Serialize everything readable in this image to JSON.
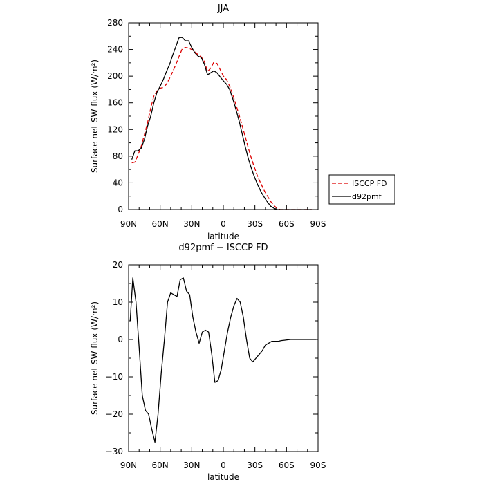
{
  "chart_data": [
    {
      "type": "line",
      "title": "JJA",
      "xlabel": "latitude",
      "ylabel": "Surface net SW flux (W/m²)",
      "x_ticks": [
        "90N",
        "60N",
        "30N",
        "0",
        "30S",
        "60S",
        "90S"
      ],
      "y_ticks": [
        "0",
        "40",
        "80",
        "120",
        "160",
        "200",
        "240",
        "280"
      ],
      "xlim": [
        90,
        -90
      ],
      "ylim": [
        0,
        280
      ],
      "legend": {
        "placement": "right-outside"
      },
      "series": [
        {
          "name": "ISCCP FD",
          "color": "#dd0000",
          "style": "dashed",
          "x": [
            87,
            84,
            81,
            78,
            75,
            72,
            69,
            66,
            63,
            60,
            57,
            54,
            51,
            48,
            45,
            42,
            39,
            36,
            33,
            30,
            27,
            24,
            21,
            18,
            15,
            12,
            9,
            6,
            3,
            0,
            -3,
            -6,
            -9,
            -12,
            -15,
            -18,
            -21,
            -24,
            -27,
            -30,
            -33,
            -36,
            -39,
            -42,
            -45,
            -48,
            -51,
            -54,
            -57,
            -60,
            -63,
            -66,
            -69,
            -72,
            -75,
            -78,
            -81,
            -84
          ],
          "values": [
            70,
            71,
            82,
            95,
            112,
            130,
            152,
            170,
            178,
            182,
            183,
            188,
            197,
            207,
            218,
            230,
            241,
            243,
            242,
            240,
            237,
            232,
            229,
            222,
            207,
            212,
            221,
            219,
            210,
            200,
            195,
            185,
            172,
            157,
            142,
            125,
            108,
            91,
            75,
            61,
            48,
            38,
            28,
            20,
            12,
            6,
            2,
            0,
            0,
            0,
            0,
            0,
            0,
            0,
            0,
            0,
            0,
            0
          ]
        },
        {
          "name": "d92pmf",
          "color": "#000000",
          "style": "solid",
          "x": [
            87,
            84,
            81,
            78,
            75,
            72,
            69,
            66,
            63,
            60,
            57,
            54,
            51,
            48,
            45,
            42,
            39,
            36,
            33,
            30,
            27,
            24,
            21,
            18,
            15,
            12,
            9,
            6,
            3,
            0,
            -3,
            -6,
            -9,
            -12,
            -15,
            -18,
            -21,
            -24,
            -27,
            -30,
            -33,
            -36,
            -39,
            -42,
            -45,
            -48,
            -51,
            -54,
            -57,
            -60,
            -63,
            -66,
            -69,
            -72,
            -75,
            -78,
            -81,
            -84
          ],
          "values": [
            75,
            88,
            88,
            92,
            105,
            125,
            140,
            160,
            176,
            185,
            195,
            207,
            218,
            232,
            245,
            258,
            258,
            253,
            253,
            243,
            235,
            230,
            228,
            218,
            202,
            205,
            208,
            205,
            199,
            193,
            188,
            180,
            166,
            150,
            133,
            113,
            93,
            75,
            60,
            47,
            36,
            26,
            18,
            11,
            5,
            2,
            0,
            0,
            0,
            0,
            0,
            0,
            0,
            0,
            0,
            0,
            0,
            0
          ]
        }
      ]
    },
    {
      "type": "line",
      "title": "d92pmf − ISCCP FD",
      "xlabel": "latitude",
      "ylabel": "Surface net SW flux (W/m²)",
      "x_ticks": [
        "90N",
        "60N",
        "30N",
        "0",
        "30S",
        "60S",
        "90S"
      ],
      "y_ticks": [
        "−30",
        "−20",
        "−10",
        "0",
        "10",
        "20"
      ],
      "xlim": [
        90,
        -90
      ],
      "ylim": [
        -30,
        20
      ],
      "series": [
        {
          "color": "#000000",
          "style": "solid",
          "x": [
            88.5,
            86,
            83,
            80,
            77,
            74,
            71,
            68,
            65,
            62,
            59,
            56,
            53,
            50,
            47,
            44,
            41,
            38,
            35,
            32,
            29,
            26,
            23,
            20,
            17,
            14,
            11,
            8,
            5,
            2,
            -1,
            -4,
            -7,
            -10,
            -13,
            -16,
            -19,
            -22,
            -25,
            -28,
            -31,
            -34,
            -37,
            -40,
            -43,
            -46,
            -49,
            -52,
            -55,
            -58,
            -61,
            -64,
            -67,
            -70,
            -73,
            -76,
            -79,
            -82,
            -85,
            -88
          ],
          "values": [
            5,
            16.5,
            10,
            -2,
            -15,
            -19,
            -20,
            -24,
            -27.5,
            -20,
            -9,
            0,
            10,
            12.5,
            12,
            11.5,
            16,
            16.5,
            13,
            12,
            6,
            2,
            -1,
            2,
            2.5,
            2,
            -4,
            -11.5,
            -11,
            -8,
            -3,
            2,
            6,
            9,
            11,
            10,
            6,
            0,
            -5,
            -6,
            -5,
            -4,
            -3,
            -1.5,
            -1,
            -0.5,
            -0.5,
            -0.5,
            -0.3,
            -0.2,
            -0.1,
            0,
            0,
            0,
            0,
            0,
            0,
            0,
            0,
            0
          ]
        }
      ]
    }
  ]
}
